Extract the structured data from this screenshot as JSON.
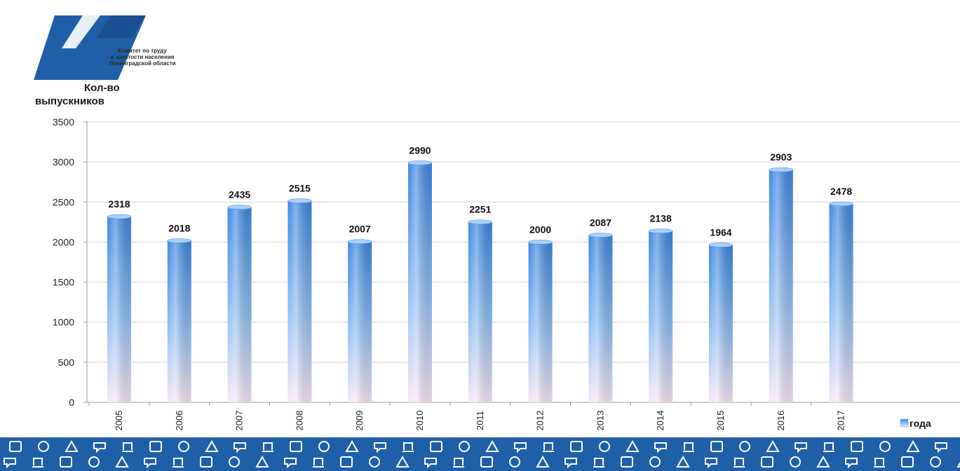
{
  "organization": {
    "name_lines": [
      "Комитет по труду",
      "и занятости населения",
      "Ленинградской области"
    ]
  },
  "chart_data": {
    "type": "bar",
    "ylabel_lines": [
      "Кол-во",
      "выпускников"
    ],
    "categories": [
      "2005",
      "2006",
      "2007",
      "2008",
      "2009",
      "2010",
      "2011",
      "2012",
      "2013",
      "2014",
      "2015",
      "2016",
      "2017"
    ],
    "values": [
      2318,
      2018,
      2435,
      2515,
      2007,
      2990,
      2251,
      2000,
      2087,
      2138,
      1964,
      2903,
      2478
    ],
    "data_labels": [
      "2318",
      "2018",
      "2435",
      "2515",
      "2007",
      "2990",
      "2251",
      "2000",
      "2087",
      "2138",
      "1964",
      "2903",
      "2478"
    ],
    "ylim": [
      0,
      3500
    ],
    "yticks": [
      0,
      500,
      1000,
      1500,
      2000,
      2500,
      3000,
      3500
    ],
    "series": [
      {
        "name": "года",
        "values": [
          2318,
          2018,
          2435,
          2515,
          2007,
          2990,
          2251,
          2000,
          2087,
          2138,
          1964,
          2903,
          2478
        ]
      }
    ],
    "legend_position": "bottom-right",
    "grid": true,
    "colors": {
      "bar_top": "#3d86e0",
      "bar_bottom": "#f6e4f4",
      "accent": "#1f5fa8"
    }
  }
}
